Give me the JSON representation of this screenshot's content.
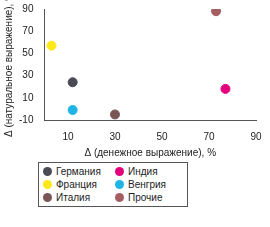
{
  "chart_data": {
    "type": "scatter",
    "x_label": "Δ (денежное выражение), %",
    "y_label": "Δ (натуральное выражение), %",
    "xlim": [
      0,
      90
    ],
    "xticks": [
      10,
      30,
      50,
      70,
      90
    ],
    "ylim": [
      -10,
      90
    ],
    "yticks": [
      -10,
      10,
      30,
      50,
      70,
      90
    ],
    "grid": false,
    "legend": "bottom",
    "marker": "circle",
    "series": [
      {
        "name": "Германия",
        "color": "#4a4a55",
        "x": [
          12
        ],
        "values": [
          24
        ]
      },
      {
        "name": "Индия",
        "color": "#e4007c",
        "x": [
          77
        ],
        "values": [
          18
        ]
      },
      {
        "name": "Франция",
        "color": "#ffe81a",
        "x": [
          3
        ],
        "values": [
          57
        ]
      },
      {
        "name": "Венгрия",
        "color": "#1eb4e6",
        "x": [
          12
        ],
        "values": [
          -1
        ]
      },
      {
        "name": "Италия",
        "color": "#7a5656",
        "x": [
          30
        ],
        "values": [
          -5
        ]
      },
      {
        "name": "Прочие",
        "color": "#a45e60",
        "x": [
          73
        ],
        "values": [
          88
        ]
      }
    ]
  }
}
